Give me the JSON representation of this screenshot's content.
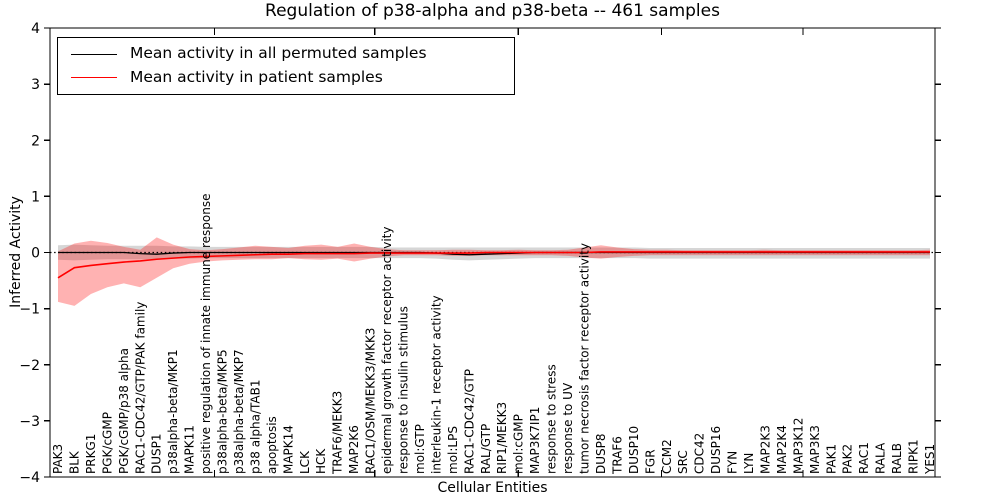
{
  "figure": {
    "title": "Regulation of p38-alpha and p38-beta -- 461 samples",
    "xlabel": "Cellular Entities",
    "ylabel": "Inferred Activity",
    "legend": [
      {
        "label": "Mean activity in all permuted samples",
        "color": "#000000"
      },
      {
        "label": "Mean activity in patient samples",
        "color": "#ff0000"
      }
    ]
  },
  "chart_data": {
    "type": "line",
    "title": "Regulation of p38-alpha and p38-beta -- 461 samples",
    "xlabel": "Cellular Entities",
    "ylabel": "Inferred Activity",
    "ylim": [
      -4,
      4
    ],
    "yticks": [
      4,
      3,
      2,
      1,
      0,
      -1,
      -2,
      -3,
      -4
    ],
    "ytick_labels": [
      "4",
      "3",
      "2",
      "1",
      "0",
      "−1",
      "−2",
      "−3",
      "−4"
    ],
    "grid": false,
    "zero_reference_line": "dotted",
    "legend_position": "upper left",
    "x_tick_label_rotation": 90,
    "categories": [
      "PAK3",
      "BLK",
      "PRKG1",
      "PGK/cGMP",
      "PGK/cGMP/p38 alpha",
      "RAC1-CDC42/GTP/PAK family",
      "DUSP1",
      "p38alpha-beta/MKP1",
      "MAPK11",
      "positive regulation of innate immune response",
      "p38alpha-beta/MKP5",
      "p38alpha-beta/MKP7",
      "p38 alpha/TAB1",
      "apoptosis",
      "MAPK14",
      "LCK",
      "HCK",
      "TRAF6/MEKK3",
      "MAP2K6",
      "RAC1/OSM/MEKK3/MKK3",
      "epidermal growth factor receptor activity",
      "response to insulin stimulus",
      "mol:GTP",
      "interleukin-1 receptor activity",
      "mol:LPS",
      "RAC1-CDC42/GTP",
      "RAL/GTP",
      "RIP1/MEKK3",
      "mol:cGMP",
      "MAP3K7IP1",
      "response to stress",
      "response to UV",
      "tumor necrosis factor receptor activity",
      "DUSP8",
      "TRAF6",
      "DUSP10",
      "FGR",
      "CCM2",
      "SRC",
      "CDC42",
      "DUSP16",
      "FYN",
      "LYN",
      "MAP2K3",
      "MAP2K4",
      "MAP3K12",
      "MAP3K3",
      "PAK1",
      "PAK2",
      "RAC1",
      "RALA",
      "RALB",
      "RIPK1",
      "YES1"
    ],
    "series": [
      {
        "name": "Mean activity in all permuted samples",
        "color": "#000000",
        "style": "solid",
        "values": [
          0,
          0,
          0,
          0,
          0,
          -0.02,
          -0.03,
          -0.01,
          0,
          0,
          0,
          0,
          0,
          0,
          0,
          0,
          0,
          0,
          0,
          0,
          0,
          0,
          0,
          -0.01,
          -0.03,
          -0.04,
          -0.03,
          -0.02,
          -0.01,
          0,
          0,
          0,
          0,
          0,
          0,
          0,
          0,
          0,
          0,
          0,
          0,
          0,
          0,
          0,
          0,
          0,
          0,
          0,
          0,
          0,
          0,
          0,
          0,
          0
        ]
      },
      {
        "name": "Mean activity in patient samples",
        "color": "#ff0000",
        "style": "solid",
        "values": [
          -0.45,
          -0.27,
          -0.23,
          -0.2,
          -0.17,
          -0.15,
          -0.12,
          -0.1,
          -0.08,
          -0.07,
          -0.06,
          -0.05,
          -0.04,
          -0.03,
          -0.03,
          -0.02,
          -0.02,
          -0.02,
          -0.02,
          -0.01,
          -0.01,
          -0.01,
          -0.01,
          -0.01,
          -0.01,
          -0.01,
          0,
          0,
          0,
          0,
          0,
          0,
          0,
          0.01,
          0.01,
          0.01,
          0.01,
          0.01,
          0.01,
          0.01,
          0.01,
          0.01,
          0.01,
          0.01,
          0.01,
          0.01,
          0.01,
          0.01,
          0.01,
          0.01,
          0.01,
          0.01,
          0.01,
          0.01
        ]
      }
    ],
    "bands": [
      {
        "name": "permuted samples spread",
        "color": "rgba(0,0,0,0.16)",
        "upper": [
          0.13,
          0.14,
          0.13,
          0.12,
          0.12,
          0.12,
          0.12,
          0.11,
          0.11,
          0.1,
          0.1,
          0.1,
          0.1,
          0.1,
          0.1,
          0.1,
          0.1,
          0.1,
          0.1,
          0.1,
          0.09,
          0.09,
          0.09,
          0.09,
          0.09,
          0.09,
          0.09,
          0.09,
          0.09,
          0.09,
          0.09,
          0.09,
          0.09,
          0.09,
          0.09,
          0.09,
          0.08,
          0.08,
          0.08,
          0.08,
          0.08,
          0.08,
          0.08,
          0.08,
          0.08,
          0.08,
          0.08,
          0.08,
          0.08,
          0.08,
          0.08,
          0.08,
          0.08,
          0.08
        ],
        "lower": [
          -0.13,
          -0.14,
          -0.13,
          -0.12,
          -0.12,
          -0.12,
          -0.12,
          -0.11,
          -0.11,
          -0.1,
          -0.1,
          -0.1,
          -0.1,
          -0.1,
          -0.1,
          -0.1,
          -0.1,
          -0.1,
          -0.1,
          -0.1,
          -0.1,
          -0.1,
          -0.1,
          -0.11,
          -0.13,
          -0.14,
          -0.13,
          -0.12,
          -0.11,
          -0.1,
          -0.1,
          -0.1,
          -0.1,
          -0.1,
          -0.1,
          -0.1,
          -0.11,
          -0.11,
          -0.11,
          -0.11,
          -0.11,
          -0.11,
          -0.11,
          -0.11,
          -0.11,
          -0.11,
          -0.11,
          -0.11,
          -0.11,
          -0.11,
          -0.11,
          -0.11,
          -0.11,
          -0.11
        ]
      },
      {
        "name": "patient samples spread",
        "color": "rgba(255,0,0,0.30)",
        "upper": [
          0.02,
          0.16,
          0.21,
          0.17,
          0.1,
          0.05,
          0.27,
          0.14,
          0.06,
          0.04,
          0.06,
          0.09,
          0.12,
          0.1,
          0.08,
          0.12,
          0.14,
          0.1,
          0.16,
          0.1,
          0.06,
          0.04,
          0.04,
          0.04,
          0.05,
          0.05,
          0.04,
          0.04,
          0.05,
          0.04,
          0.04,
          0.05,
          0.09,
          0.13,
          0.09,
          0.06,
          0.05,
          0.05,
          0.04,
          0.04,
          0.04,
          0.04,
          0.04,
          0.05,
          0.04,
          0.04,
          0.04,
          0.04,
          0.04,
          0.04,
          0.04,
          0.04,
          0.04,
          0.05
        ],
        "lower": [
          -0.88,
          -0.95,
          -0.74,
          -0.62,
          -0.55,
          -0.62,
          -0.45,
          -0.28,
          -0.2,
          -0.16,
          -0.14,
          -0.13,
          -0.12,
          -0.12,
          -0.1,
          -0.12,
          -0.13,
          -0.11,
          -0.16,
          -0.11,
          -0.07,
          -0.05,
          -0.05,
          -0.05,
          -0.06,
          -0.06,
          -0.05,
          -0.05,
          -0.05,
          -0.05,
          -0.05,
          -0.06,
          -0.09,
          -0.11,
          -0.08,
          -0.06,
          -0.05,
          -0.05,
          -0.05,
          -0.05,
          -0.05,
          -0.05,
          -0.05,
          -0.05,
          -0.05,
          -0.05,
          -0.05,
          -0.05,
          -0.05,
          -0.05,
          -0.05,
          -0.05,
          -0.05,
          -0.05
        ]
      }
    ]
  }
}
